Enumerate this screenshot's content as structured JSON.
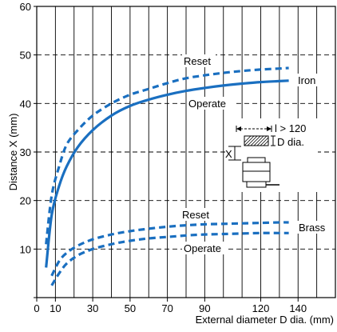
{
  "chart_data": {
    "type": "line",
    "title": "",
    "xlabel": "External diameter D dia. (mm)",
    "ylabel": "Distance X (mm)",
    "xlim": [
      0,
      160
    ],
    "ylim": [
      0,
      60
    ],
    "x_gridlines": [
      0,
      10,
      20,
      30,
      40,
      50,
      60,
      70,
      80,
      90,
      100,
      110,
      120,
      130,
      140,
      150,
      160
    ],
    "x_tick_labels": [
      {
        "value": 0,
        "label": "0"
      },
      {
        "value": 10,
        "label": "10"
      },
      {
        "value": 30,
        "label": "30"
      },
      {
        "value": 50,
        "label": "50"
      },
      {
        "value": 70,
        "label": "70"
      },
      {
        "value": 90,
        "label": "90"
      },
      {
        "value": 120,
        "label": "120"
      },
      {
        "value": 140,
        "label": "140"
      }
    ],
    "y_ticks": [
      0,
      10,
      20,
      30,
      40,
      50,
      60
    ],
    "y_tick_labels": [
      "",
      "10",
      "20",
      "30",
      "40",
      "50",
      "60"
    ],
    "grid": {
      "vertical": "solid",
      "horizontal": "dashed"
    },
    "line_color": "#1a6fc0",
    "series": [
      {
        "group": "Iron",
        "curve": "Reset",
        "style": "dashed",
        "x": [
          5,
          8,
          12,
          16,
          22,
          30,
          40,
          50,
          60,
          70,
          80,
          90,
          100,
          110,
          120,
          130,
          135
        ],
        "y": [
          11,
          21,
          27,
          31.5,
          34.5,
          37.5,
          40,
          41.8,
          43,
          44.2,
          45.2,
          45.8,
          46.3,
          46.7,
          47,
          47.2,
          47.3
        ]
      },
      {
        "group": "Iron",
        "curve": "Operate",
        "style": "solid",
        "x": [
          5,
          8,
          12,
          16,
          22,
          30,
          40,
          50,
          60,
          70,
          80,
          90,
          100,
          110,
          120,
          130,
          135
        ],
        "y": [
          6.2,
          17,
          23,
          27,
          31,
          34.5,
          37.5,
          39.5,
          40.8,
          41.8,
          42.6,
          43.2,
          43.7,
          44.1,
          44.4,
          44.6,
          44.7
        ]
      },
      {
        "group": "Brass",
        "curve": "Reset",
        "style": "dashed",
        "x": [
          8,
          12,
          16,
          22,
          30,
          40,
          50,
          60,
          70,
          80,
          90,
          100,
          110,
          120,
          130,
          135
        ],
        "y": [
          4.5,
          7.5,
          9.2,
          10.7,
          12,
          13,
          13.7,
          14.2,
          14.6,
          14.9,
          15.1,
          15.2,
          15.3,
          15.4,
          15.5,
          15.5
        ]
      },
      {
        "group": "Brass",
        "curve": "Operate",
        "style": "dashed",
        "x": [
          8,
          12,
          16,
          22,
          30,
          40,
          50,
          60,
          70,
          80,
          90,
          100,
          110,
          120,
          130,
          135
        ],
        "y": [
          2.5,
          5,
          7,
          8.7,
          10,
          11,
          11.7,
          12.2,
          12.5,
          12.8,
          13,
          13.1,
          13.2,
          13.3,
          13.3,
          13.3
        ]
      }
    ],
    "annotations": [
      {
        "id": "iron-reset",
        "text": "Reset"
      },
      {
        "id": "iron-operate",
        "text": "Operate"
      },
      {
        "id": "iron",
        "text": "Iron"
      },
      {
        "id": "brass-reset",
        "text": "Reset"
      },
      {
        "id": "brass-operate",
        "text": "Operate"
      },
      {
        "id": "brass",
        "text": "Brass"
      },
      {
        "id": "inset-l",
        "text": "l > 120"
      },
      {
        "id": "inset-d",
        "text": "D dia."
      },
      {
        "id": "inset-x",
        "text": "X"
      }
    ]
  }
}
